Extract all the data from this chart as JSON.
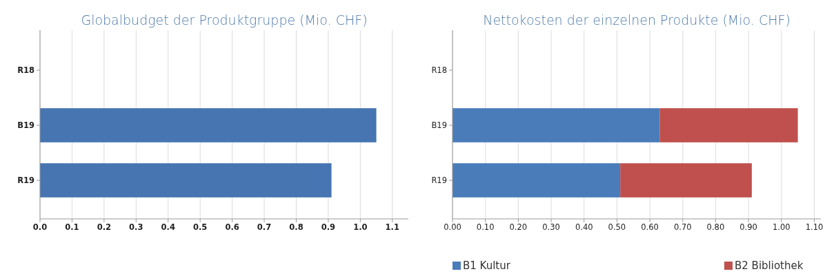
{
  "chart_data": [
    {
      "type": "bar",
      "orientation": "horizontal",
      "title": "Globalbudget der Produktgruppe (Mio. CHF)",
      "categories": [
        "R18",
        "B19",
        "R19"
      ],
      "values": [
        null,
        1.05,
        0.91
      ],
      "color": "#4675b2",
      "xlim": [
        0,
        1.15
      ],
      "xticks": [
        {
          "value": 0,
          "label": "0.0"
        },
        0.1,
        0.2,
        0.3,
        0.4,
        0.5,
        0.6,
        0.7,
        0.8,
        0.9,
        {
          "value": 1,
          "label": "1.0"
        },
        1.1
      ],
      "grid": "x",
      "legend": false
    },
    {
      "type": "bar",
      "orientation": "horizontal",
      "stacked": true,
      "title": "Nettokosten der einzelnen Produkte (Mio. CHF)",
      "categories": [
        "R18",
        "B19",
        "R19"
      ],
      "series": [
        {
          "name": "B1 Kultur",
          "color": "#4a7cba",
          "values": [
            null,
            0.63,
            0.51
          ]
        },
        {
          "name": "B2 Bibliothek",
          "color": "#c0504d",
          "values": [
            null,
            0.42,
            0.4
          ]
        }
      ],
      "xlim": [
        0,
        1.12
      ],
      "xticks": [
        {
          "value": 0,
          "label": "0.00"
        },
        {
          "value": 0.1,
          "label": "0.10"
        },
        {
          "value": 0.2,
          "label": "0.20"
        },
        {
          "value": 0.3,
          "label": "0.30"
        },
        {
          "value": 0.4,
          "label": "0.40"
        },
        {
          "value": 0.5,
          "label": "0.50"
        },
        {
          "value": 0.6,
          "label": "0.60"
        },
        {
          "value": 0.7,
          "label": "0.70"
        },
        {
          "value": 0.8,
          "label": "0.80"
        },
        {
          "value": 0.9,
          "label": "0.90"
        },
        {
          "value": 1,
          "label": "1.00"
        },
        {
          "value": 1.1,
          "label": "1.10"
        }
      ],
      "grid": "x",
      "legend": "bottom"
    }
  ]
}
